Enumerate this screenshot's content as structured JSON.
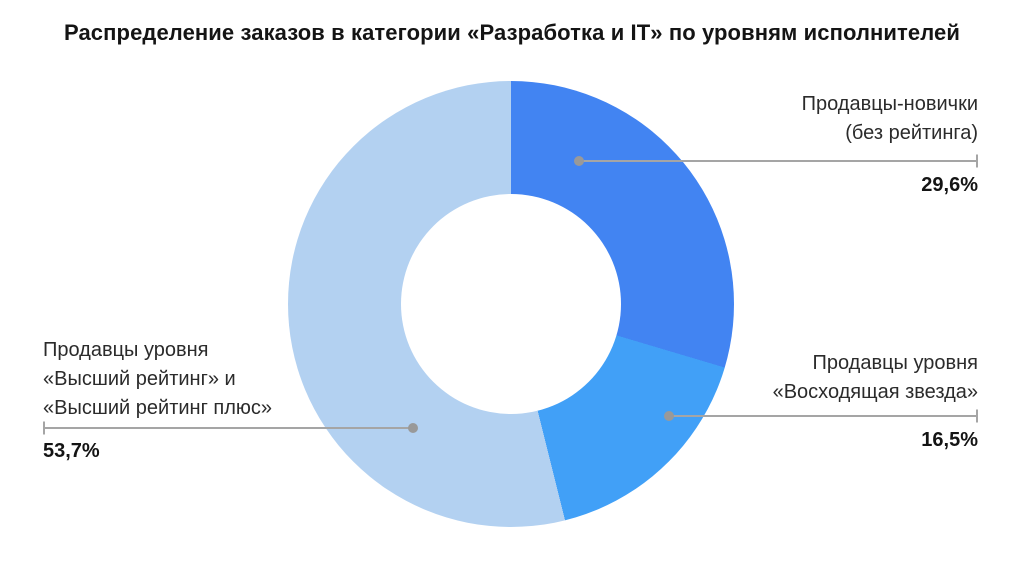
{
  "title": "Распределение заказов в категории «Разработка и IT» по уровням исполнителей",
  "chart_data": {
    "type": "pie",
    "subtype": "donut",
    "title": "Распределение заказов в категории «Разработка и IT» по уровням исполнителей",
    "categories": [
      "Продавцы-новички (без рейтинга)",
      "Продавцы уровня «Восходящая звезда»",
      "Продавцы уровня «Высший рейтинг» и «Высший рейтинг плюс»"
    ],
    "values": [
      29.6,
      16.5,
      53.7
    ],
    "value_labels": [
      "29,6%",
      "16,5%",
      "53,7%"
    ],
    "colors": [
      "#4284F2",
      "#41A0F7",
      "#B3D1F1"
    ],
    "start_angle_deg": 0,
    "direction": "clockwise",
    "inner_radius_ratio": 0.49,
    "background": "#ffffff",
    "legend_position": "callout-labels",
    "leader_line_color": "#a5a5a5",
    "dot_color": "#999999"
  },
  "callouts": [
    {
      "lines": [
        "Продавцы-новички",
        "(без рейтинга)"
      ],
      "value": "29,6%"
    },
    {
      "lines": [
        "Продавцы уровня",
        "«Восходящая звезда»"
      ],
      "value": "16,5%"
    },
    {
      "lines": [
        "Продавцы уровня",
        "«Высший рейтинг» и",
        "«Высший рейтинг плюс»"
      ],
      "value": "53,7%"
    }
  ]
}
